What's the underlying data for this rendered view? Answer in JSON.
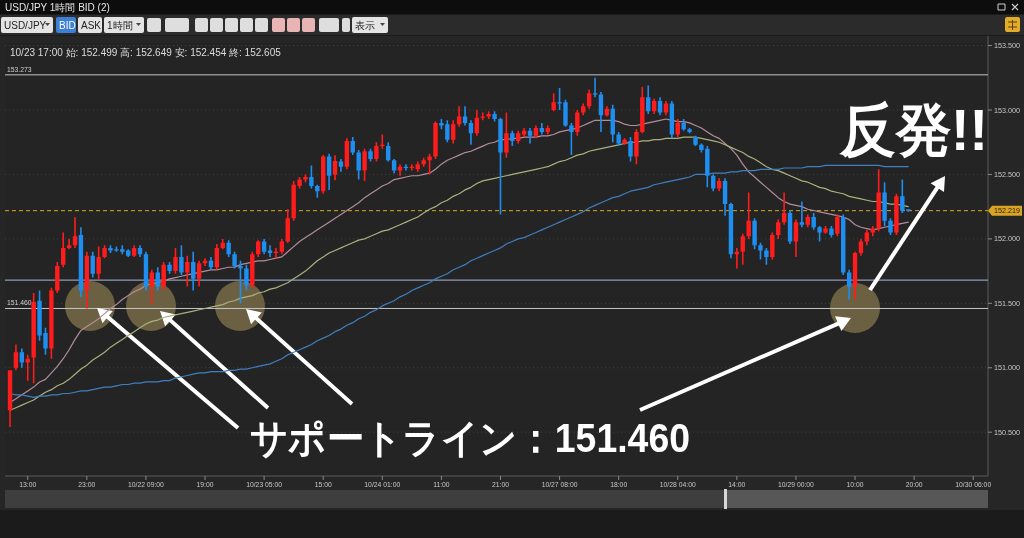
{
  "chart_data": {
    "type": "candlestick",
    "title": "USD/JPY 1時間 BID (2)",
    "subtitle": "10/23 17:00 始: 152.499 高: 152.649 安: 152.454 終: 152.605",
    "categories": [
      null,
      null,
      null,
      "13:00",
      null,
      null,
      null,
      null,
      null,
      null,
      null,
      null,
      null,
      "23:00",
      null,
      null,
      null,
      null,
      null,
      null,
      null,
      null,
      null,
      "10/22 09:00",
      null,
      null,
      null,
      null,
      null,
      null,
      null,
      null,
      null,
      "19:00",
      null,
      null,
      null,
      null,
      null,
      null,
      null,
      null,
      null,
      "10/23 05:00",
      null,
      null,
      null,
      null,
      null,
      null,
      null,
      null,
      null,
      "15:00",
      null,
      null,
      null,
      null,
      null,
      null,
      null,
      null,
      null,
      "10/24 01:00",
      null,
      null,
      null,
      null,
      null,
      null,
      null,
      null,
      null,
      "11:00",
      null,
      null,
      null,
      null,
      null,
      null,
      null,
      null,
      null,
      "21:00",
      null,
      null,
      null,
      null,
      null,
      null,
      null,
      null,
      null,
      "10/27 08:00",
      null,
      null,
      null,
      null,
      null,
      null,
      null,
      null,
      null,
      "18:00",
      null,
      null,
      null,
      null,
      null,
      null,
      null,
      null,
      null,
      "10/28 04:00",
      null,
      null,
      null,
      null,
      null,
      null,
      null,
      null,
      null,
      "14:00",
      null,
      null,
      null,
      null,
      null,
      null,
      null,
      null,
      null,
      "10/29 00:00",
      null,
      null,
      null,
      null,
      null,
      null,
      null,
      null,
      null,
      "10:00",
      null,
      null,
      null,
      null,
      null,
      null,
      null,
      null,
      null,
      "20:00",
      null,
      null,
      null,
      null,
      null,
      null,
      null,
      null,
      null,
      "10/30 06:00"
    ],
    "ohlc": [
      [
        150.67,
        150.98,
        150.54,
        150.98
      ],
      [
        151.0,
        151.18,
        150.98,
        151.12
      ],
      [
        151.12,
        151.15,
        151.0,
        151.04
      ],
      [
        151.04,
        151.1,
        150.9,
        151.07
      ],
      [
        151.08,
        151.58,
        150.88,
        151.51
      ],
      [
        151.52,
        151.6,
        151.21,
        151.25
      ],
      [
        151.27,
        151.31,
        151.1,
        151.15
      ],
      [
        151.15,
        151.62,
        151.07,
        151.6
      ],
      [
        151.6,
        151.82,
        151.58,
        151.79
      ],
      [
        151.8,
        152.05,
        151.78,
        151.93
      ],
      [
        151.93,
        152.0,
        151.92,
        151.95
      ],
      [
        151.95,
        152.17,
        151.93,
        152.02
      ],
      [
        152.03,
        152.09,
        151.55,
        151.6
      ],
      [
        151.6,
        151.9,
        151.46,
        151.87
      ],
      [
        151.87,
        151.9,
        151.7,
        151.73
      ],
      [
        151.73,
        151.94,
        151.68,
        151.86
      ],
      [
        151.86,
        151.95,
        151.85,
        151.93
      ],
      [
        151.93,
        151.95,
        151.89,
        151.91
      ],
      [
        151.92,
        151.94,
        151.9,
        151.91
      ],
      [
        151.92,
        151.95,
        151.88,
        151.9
      ],
      [
        151.91,
        151.92,
        151.86,
        151.87
      ],
      [
        151.87,
        151.95,
        151.86,
        151.93
      ],
      [
        151.93,
        151.95,
        151.86,
        151.88
      ],
      [
        151.88,
        151.9,
        151.6,
        151.63
      ],
      [
        151.63,
        151.76,
        151.49,
        151.74
      ],
      [
        151.74,
        151.78,
        151.6,
        151.63
      ],
      [
        151.63,
        151.82,
        151.6,
        151.8
      ],
      [
        151.8,
        151.82,
        151.73,
        151.75
      ],
      [
        151.75,
        151.93,
        151.73,
        151.86
      ],
      [
        151.86,
        151.95,
        151.72,
        151.74
      ],
      [
        151.74,
        151.87,
        151.63,
        151.82
      ],
      [
        151.82,
        151.9,
        151.6,
        151.69
      ],
      [
        151.69,
        151.83,
        151.63,
        151.81
      ],
      [
        151.81,
        151.85,
        151.79,
        151.83
      ],
      [
        151.83,
        151.86,
        151.76,
        151.78
      ],
      [
        151.78,
        151.96,
        151.76,
        151.93
      ],
      [
        151.93,
        152.0,
        151.92,
        151.97
      ],
      [
        151.97,
        151.99,
        151.86,
        151.88
      ],
      [
        151.88,
        151.9,
        151.77,
        151.79
      ],
      [
        151.79,
        151.83,
        151.5,
        151.77
      ],
      [
        151.77,
        151.8,
        151.6,
        151.64
      ],
      [
        151.64,
        151.9,
        151.62,
        151.88
      ],
      [
        151.88,
        151.99,
        151.86,
        151.98
      ],
      [
        151.98,
        152.0,
        151.88,
        151.9
      ],
      [
        151.91,
        151.95,
        151.86,
        151.89
      ],
      [
        151.89,
        151.93,
        151.85,
        151.9
      ],
      [
        151.9,
        152.0,
        151.88,
        151.98
      ],
      [
        151.98,
        152.23,
        151.97,
        152.16
      ],
      [
        152.16,
        152.45,
        152.14,
        152.42
      ],
      [
        152.41,
        152.48,
        152.39,
        152.46
      ],
      [
        152.46,
        152.5,
        152.44,
        152.48
      ],
      [
        152.48,
        152.57,
        152.39,
        152.41
      ],
      [
        152.41,
        152.42,
        152.32,
        152.37
      ],
      [
        152.37,
        152.65,
        152.35,
        152.64
      ],
      [
        152.64,
        152.66,
        152.38,
        152.49
      ],
      [
        152.499,
        152.649,
        152.454,
        152.605
      ],
      [
        152.6,
        152.62,
        152.52,
        152.56
      ],
      [
        152.56,
        152.78,
        152.54,
        152.76
      ],
      [
        152.76,
        152.79,
        152.65,
        152.67
      ],
      [
        152.67,
        152.69,
        152.46,
        152.53
      ],
      [
        152.53,
        152.7,
        152.45,
        152.68
      ],
      [
        152.68,
        152.7,
        152.6,
        152.62
      ],
      [
        152.62,
        152.75,
        152.6,
        152.72
      ],
      [
        152.72,
        152.81,
        152.7,
        152.73
      ],
      [
        152.72,
        152.75,
        152.6,
        152.61
      ],
      [
        152.61,
        152.62,
        152.51,
        152.53
      ],
      [
        152.53,
        152.58,
        152.49,
        152.56
      ],
      [
        152.56,
        152.58,
        152.53,
        152.55
      ],
      [
        152.55,
        152.58,
        152.53,
        152.56
      ],
      [
        152.54,
        152.6,
        152.52,
        152.58
      ],
      [
        152.58,
        152.63,
        152.56,
        152.61
      ],
      [
        152.61,
        152.66,
        152.5,
        152.64
      ],
      [
        152.64,
        152.91,
        152.62,
        152.9
      ],
      [
        152.9,
        152.93,
        152.85,
        152.88
      ],
      [
        152.89,
        152.92,
        152.75,
        152.77
      ],
      [
        152.77,
        152.92,
        152.74,
        152.89
      ],
      [
        152.89,
        153.03,
        152.87,
        152.95
      ],
      [
        152.95,
        153.03,
        152.88,
        152.9
      ],
      [
        152.9,
        152.92,
        152.73,
        152.82
      ],
      [
        152.82,
        153.0,
        152.8,
        152.94
      ],
      [
        152.94,
        152.98,
        152.92,
        152.95
      ],
      [
        152.95,
        152.99,
        152.93,
        152.97
      ],
      [
        152.97,
        152.99,
        152.91,
        152.93
      ],
      [
        152.93,
        152.94,
        152.19,
        152.67
      ],
      [
        152.67,
        152.98,
        152.63,
        152.82
      ],
      [
        152.82,
        152.84,
        152.72,
        152.76
      ],
      [
        152.76,
        152.84,
        152.74,
        152.82
      ],
      [
        152.81,
        152.86,
        152.79,
        152.84
      ],
      [
        152.84,
        152.86,
        152.74,
        152.8
      ],
      [
        152.8,
        152.88,
        152.78,
        152.86
      ],
      [
        152.86,
        152.9,
        152.81,
        152.83
      ],
      [
        152.83,
        152.88,
        152.81,
        152.86
      ],
      [
        153.0,
        153.13,
        152.99,
        153.06
      ],
      [
        153.06,
        153.17,
        153.0,
        153.05
      ],
      [
        153.06,
        153.08,
        152.87,
        152.88
      ],
      [
        152.88,
        152.9,
        152.65,
        152.83
      ],
      [
        152.83,
        153.0,
        152.8,
        152.98
      ],
      [
        152.98,
        153.05,
        152.96,
        153.03
      ],
      [
        153.03,
        153.16,
        153.01,
        153.13
      ],
      [
        153.13,
        153.25,
        153.1,
        153.12
      ],
      [
        153.12,
        153.14,
        152.83,
        152.96
      ],
      [
        152.96,
        153.03,
        152.95,
        153.01
      ],
      [
        153.01,
        153.04,
        152.75,
        152.81
      ],
      [
        152.81,
        152.83,
        152.72,
        152.74
      ],
      [
        152.74,
        152.78,
        152.73,
        152.77
      ],
      [
        152.76,
        152.79,
        152.6,
        152.64
      ],
      [
        152.64,
        152.85,
        152.58,
        152.83
      ],
      [
        152.83,
        153.18,
        152.82,
        153.1
      ],
      [
        153.1,
        153.19,
        152.97,
        152.99
      ],
      [
        152.99,
        153.09,
        152.97,
        153.07
      ],
      [
        153.07,
        153.1,
        152.96,
        152.98
      ],
      [
        152.98,
        153.07,
        152.96,
        153.05
      ],
      [
        153.05,
        153.07,
        152.78,
        152.81
      ],
      [
        152.81,
        152.93,
        152.79,
        152.9
      ],
      [
        152.9,
        152.93,
        152.84,
        152.85
      ],
      [
        152.85,
        152.86,
        152.82,
        152.83
      ],
      [
        152.79,
        152.8,
        152.72,
        152.73
      ],
      [
        152.73,
        152.74,
        152.67,
        152.69
      ],
      [
        152.7,
        152.72,
        152.4,
        152.49
      ],
      [
        152.49,
        152.5,
        152.37,
        152.39
      ],
      [
        152.39,
        152.47,
        152.37,
        152.45
      ],
      [
        152.45,
        152.47,
        152.18,
        152.27
      ],
      [
        152.27,
        152.28,
        151.85,
        151.88
      ],
      [
        151.88,
        151.93,
        151.77,
        151.9
      ],
      [
        151.9,
        152.04,
        151.8,
        152.02
      ],
      [
        152.02,
        152.36,
        152.0,
        152.14
      ],
      [
        152.14,
        152.16,
        151.92,
        151.95
      ],
      [
        151.95,
        151.97,
        151.84,
        151.91
      ],
      [
        151.91,
        151.93,
        151.8,
        151.86
      ],
      [
        151.86,
        152.05,
        151.84,
        152.03
      ],
      [
        152.03,
        152.15,
        152.0,
        152.13
      ],
      [
        152.13,
        152.36,
        152.11,
        152.2
      ],
      [
        152.2,
        152.22,
        151.96,
        151.98
      ],
      [
        151.98,
        152.15,
        151.86,
        152.13
      ],
      [
        152.13,
        152.29,
        152.09,
        152.11
      ],
      [
        152.11,
        152.19,
        152.09,
        152.17
      ],
      [
        152.17,
        152.2,
        152.07,
        152.09
      ],
      [
        152.09,
        152.1,
        151.98,
        152.05
      ],
      [
        152.05,
        152.1,
        152.04,
        152.08
      ],
      [
        152.08,
        152.1,
        152.01,
        152.03
      ],
      [
        152.04,
        152.19,
        152.02,
        152.17
      ],
      [
        152.17,
        152.19,
        151.72,
        151.74
      ],
      [
        151.74,
        151.76,
        151.53,
        151.63
      ],
      [
        151.63,
        151.9,
        151.53,
        151.89
      ],
      [
        151.89,
        152.0,
        151.87,
        151.98
      ],
      [
        151.98,
        152.07,
        151.95,
        152.05
      ],
      [
        152.05,
        152.1,
        152.02,
        152.08
      ],
      [
        152.08,
        152.54,
        152.06,
        152.36
      ],
      [
        152.36,
        152.44,
        152.1,
        152.14
      ],
      [
        152.14,
        152.16,
        152.03,
        152.05
      ],
      [
        152.05,
        152.35,
        152.03,
        152.33
      ],
      [
        152.33,
        152.46,
        152.2,
        152.22
      ],
      [
        152.23,
        152.23,
        152.21,
        152.219
      ],
      null,
      null,
      null,
      null,
      null,
      null,
      null,
      null,
      null,
      null,
      null
    ],
    "colors": [
      "#ff1c1c",
      "#ff1c1c",
      "#1f8ef1",
      "#ff1c1c",
      "#ff1c1c",
      "#1f8ef1",
      "#1f8ef1",
      "#ff1c1c",
      "#ff1c1c",
      "#ff1c1c",
      "#ff1c1c",
      "#ff1c1c",
      "#1f8ef1",
      "#ff1c1c",
      "#1f8ef1",
      "#ff1c1c",
      "#ff1c1c",
      "#1f8ef1",
      "#1f8ef1",
      "#1f8ef1",
      "#1f8ef1",
      "#ff1c1c",
      "#1f8ef1",
      "#1f8ef1",
      "#ff1c1c",
      "#1f8ef1",
      "#ff1c1c",
      "#1f8ef1",
      "#ff1c1c",
      "#1f8ef1",
      "#ff1c1c",
      "#1f8ef1",
      "#ff1c1c",
      "#ff1c1c",
      "#1f8ef1",
      "#ff1c1c",
      "#ff1c1c",
      "#1f8ef1",
      "#1f8ef1",
      "#1f8ef1",
      "#1f8ef1",
      "#ff1c1c",
      "#ff1c1c",
      "#1f8ef1",
      "#1f8ef1",
      "#ff1c1c",
      "#ff1c1c",
      "#ff1c1c",
      "#ff1c1c",
      "#ff1c1c",
      "#ff1c1c",
      "#1f8ef1",
      "#1f8ef1",
      "#ff1c1c",
      "#1f8ef1",
      "#ff1c1c",
      "#1f8ef1",
      "#ff1c1c",
      "#1f8ef1",
      "#1f8ef1",
      "#ff1c1c",
      "#1f8ef1",
      "#ff1c1c",
      "#ff1c1c",
      "#1f8ef1",
      "#1f8ef1",
      "#ff1c1c",
      "#1f8ef1",
      "#ff1c1c",
      "#ff1c1c",
      "#ff1c1c",
      "#ff1c1c",
      "#ff1c1c",
      "#1f8ef1",
      "#1f8ef1",
      "#ff1c1c",
      "#ff1c1c",
      "#1f8ef1",
      "#1f8ef1",
      "#ff1c1c",
      "#ff1c1c",
      "#ff1c1c",
      "#1f8ef1",
      "#1f8ef1",
      "#ff1c1c",
      "#1f8ef1",
      "#ff1c1c",
      "#ff1c1c",
      "#1f8ef1",
      "#ff1c1c",
      "#1f8ef1",
      "#ff1c1c",
      "#ff1c1c",
      "#1f8ef1",
      "#1f8ef1",
      "#1f8ef1",
      "#ff1c1c",
      "#ff1c1c",
      "#ff1c1c",
      "#1f8ef1",
      "#1f8ef1",
      "#ff1c1c",
      "#1f8ef1",
      "#1f8ef1",
      "#ff1c1c",
      "#1f8ef1",
      "#ff1c1c",
      "#ff1c1c",
      "#1f8ef1",
      "#ff1c1c",
      "#1f8ef1",
      "#ff1c1c",
      "#1f8ef1",
      "#ff1c1c",
      "#1f8ef1",
      "#1f8ef1",
      "#1f8ef1",
      "#1f8ef1",
      "#1f8ef1",
      "#1f8ef1",
      "#ff1c1c",
      "#1f8ef1",
      "#1f8ef1",
      "#ff1c1c",
      "#ff1c1c",
      "#ff1c1c",
      "#1f8ef1",
      "#1f8ef1",
      "#1f8ef1",
      "#ff1c1c",
      "#ff1c1c",
      "#ff1c1c",
      "#1f8ef1",
      "#ff1c1c",
      "#1f8ef1",
      "#ff1c1c",
      "#1f8ef1",
      "#1f8ef1",
      "#ff1c1c",
      "#1f8ef1",
      "#ff1c1c",
      "#1f8ef1",
      "#1f8ef1",
      "#ff1c1c",
      "#ff1c1c",
      "#ff1c1c",
      "#ff1c1c",
      "#ff1c1c",
      "#1f8ef1",
      "#1f8ef1",
      "#ff1c1c",
      "#1f8ef1",
      "#1f8ef1",
      null,
      null,
      null,
      null,
      null,
      null,
      null,
      null,
      null,
      null,
      null
    ],
    "series": [
      {
        "type": "line",
        "color": "#b48c9c",
        "values": [
          150.73,
          150.76,
          150.79,
          150.82,
          150.85,
          150.89,
          150.91,
          150.96,
          151.01,
          151.07,
          151.14,
          151.22,
          151.29,
          151.32,
          151.35,
          151.38,
          151.42,
          151.46,
          151.49,
          151.53,
          151.56,
          151.59,
          151.61,
          151.64,
          151.65,
          151.66,
          151.67,
          151.69,
          151.7,
          151.71,
          151.72,
          151.73,
          151.74,
          151.75,
          151.76,
          151.76,
          151.77,
          151.78,
          151.78,
          151.8,
          151.81,
          151.82,
          151.83,
          151.83,
          151.84,
          151.85,
          151.86,
          151.9,
          151.94,
          151.98,
          152.01,
          152.04,
          152.07,
          152.1,
          152.13,
          152.16,
          152.19,
          152.22,
          152.25,
          152.28,
          152.32,
          152.35,
          152.38,
          152.41,
          152.43,
          152.46,
          152.47,
          152.48,
          152.49,
          152.49,
          152.5,
          152.51,
          152.54,
          152.58,
          152.61,
          152.63,
          152.65,
          152.67,
          152.68,
          152.7,
          152.72,
          152.74,
          152.75,
          152.77,
          152.77,
          152.78,
          152.78,
          152.79,
          152.79,
          152.79,
          152.8,
          152.8,
          152.81,
          152.83,
          152.84,
          152.85,
          152.86,
          152.88,
          152.9,
          152.92,
          152.92,
          152.92,
          152.92,
          152.91,
          152.89,
          152.88,
          152.88,
          152.89,
          152.9,
          152.91,
          152.92,
          152.93,
          152.92,
          152.91,
          152.91,
          152.9,
          152.88,
          152.86,
          152.83,
          152.8,
          152.78,
          152.74,
          152.7,
          152.65,
          152.58,
          152.52,
          152.48,
          152.44,
          152.4,
          152.36,
          152.32,
          152.29,
          152.27,
          152.26,
          152.25,
          152.23,
          152.22,
          152.21,
          152.2,
          152.19,
          152.18,
          152.17,
          152.15,
          152.11,
          152.09,
          152.08,
          152.07,
          152.08,
          152.09,
          152.1,
          152.11,
          152.12,
          152.13,
          null,
          null,
          null,
          null,
          null,
          null,
          null,
          null,
          null,
          null,
          null
        ]
      },
      {
        "type": "line",
        "color": "#a9b27c",
        "values": [
          150.67,
          150.69,
          150.71,
          150.73,
          150.75,
          150.78,
          150.81,
          150.83,
          150.86,
          150.88,
          150.91,
          150.95,
          150.99,
          151.02,
          151.06,
          151.09,
          151.12,
          151.16,
          151.19,
          151.22,
          151.25,
          151.28,
          151.31,
          151.34,
          151.36,
          151.37,
          151.39,
          151.4,
          151.41,
          151.42,
          151.43,
          151.44,
          151.45,
          151.46,
          151.47,
          151.48,
          151.49,
          151.51,
          151.52,
          151.54,
          151.55,
          151.56,
          151.58,
          151.59,
          151.61,
          151.62,
          151.64,
          151.66,
          151.69,
          151.72,
          151.75,
          151.79,
          151.83,
          151.86,
          151.89,
          151.91,
          151.93,
          151.95,
          151.97,
          151.99,
          152.0,
          152.02,
          152.04,
          152.06,
          152.07,
          152.09,
          152.11,
          152.13,
          152.15,
          152.17,
          152.2,
          152.23,
          152.25,
          152.28,
          152.3,
          152.33,
          152.35,
          152.38,
          152.4,
          152.43,
          152.45,
          152.46,
          152.47,
          152.48,
          152.49,
          152.5,
          152.51,
          152.52,
          152.53,
          152.54,
          152.55,
          152.56,
          152.58,
          152.6,
          152.61,
          152.63,
          152.65,
          152.66,
          152.68,
          152.69,
          152.7,
          152.71,
          152.72,
          152.73,
          152.74,
          152.75,
          152.75,
          152.76,
          152.76,
          152.77,
          152.77,
          152.78,
          152.78,
          152.78,
          152.79,
          152.79,
          152.79,
          152.78,
          152.77,
          152.76,
          152.75,
          152.73,
          152.71,
          152.69,
          152.67,
          152.64,
          152.62,
          152.59,
          152.56,
          152.54,
          152.53,
          152.51,
          152.49,
          152.47,
          152.45,
          152.44,
          152.42,
          152.4,
          152.39,
          152.37,
          152.36,
          152.35,
          152.33,
          152.32,
          152.31,
          152.3,
          152.29,
          152.29,
          152.28,
          152.27,
          152.27,
          152.26,
          152.25,
          null,
          null,
          null,
          null,
          null,
          null,
          null,
          null,
          null,
          null,
          null
        ]
      },
      {
        "type": "line",
        "color": "#3f7fc0",
        "values": [
          150.8,
          150.79,
          150.79,
          150.78,
          150.77,
          150.78,
          150.78,
          150.79,
          150.79,
          150.8,
          150.8,
          150.81,
          150.82,
          150.82,
          150.83,
          150.84,
          150.85,
          150.85,
          150.86,
          150.87,
          150.87,
          150.88,
          150.88,
          150.89,
          150.89,
          150.89,
          150.9,
          150.9,
          150.92,
          150.93,
          150.94,
          150.95,
          150.96,
          150.96,
          150.97,
          150.97,
          150.97,
          150.98,
          150.98,
          150.99,
          150.99,
          151.0,
          151.01,
          151.02,
          151.03,
          151.05,
          151.07,
          151.1,
          151.12,
          151.14,
          151.16,
          151.18,
          151.21,
          151.23,
          151.25,
          151.28,
          151.3,
          151.33,
          151.35,
          151.38,
          151.4,
          151.43,
          151.45,
          151.48,
          151.5,
          151.52,
          151.55,
          151.57,
          151.6,
          151.62,
          151.64,
          151.66,
          151.69,
          151.71,
          151.73,
          151.76,
          151.78,
          151.8,
          151.83,
          151.85,
          151.87,
          151.89,
          151.91,
          151.93,
          151.96,
          151.98,
          152.0,
          152.01,
          152.03,
          152.05,
          152.07,
          152.09,
          152.11,
          152.13,
          152.15,
          152.17,
          152.19,
          152.21,
          152.24,
          152.26,
          152.28,
          152.3,
          152.32,
          152.33,
          152.35,
          152.37,
          152.38,
          152.39,
          152.4,
          152.42,
          152.43,
          152.44,
          152.45,
          152.46,
          152.47,
          152.48,
          152.5,
          152.5,
          152.5,
          152.51,
          152.51,
          152.51,
          152.52,
          152.52,
          152.53,
          152.53,
          152.53,
          152.54,
          152.54,
          152.54,
          152.54,
          152.55,
          152.55,
          152.55,
          152.55,
          152.56,
          152.56,
          152.56,
          152.57,
          152.57,
          152.57,
          152.57,
          152.57,
          152.57,
          152.57,
          152.57,
          152.57,
          152.57,
          152.56,
          152.56,
          152.56,
          152.56,
          152.56,
          null,
          null,
          null,
          null,
          null,
          null,
          null,
          null,
          null,
          null,
          null
        ]
      }
    ],
    "ylim": [
      150.16,
      153.52
    ],
    "yticks": [
      {
        "value": 150.5,
        "label": "150.500"
      },
      {
        "value": 151,
        "label": "151.000"
      },
      {
        "value": 151.5,
        "label": "151.500"
      },
      {
        "value": 152,
        "label": "152.000"
      },
      {
        "value": 152.5,
        "label": "152.500"
      },
      {
        "value": 153,
        "label": "153.000"
      },
      {
        "value": 153.5,
        "label": "153.500"
      }
    ],
    "grid": "y",
    "ref_lines": [
      {
        "axis": "y",
        "value": 153.273,
        "label": "153.273",
        "color": "#c4c4c4"
      },
      {
        "axis": "y",
        "value": 151.46,
        "label": "151.460",
        "color": "#c4c4c4"
      },
      {
        "axis": "y",
        "value": 152.219,
        "label": "152.219",
        "color": "#d9a424",
        "line_style": "dashed"
      },
      {
        "axis": "y",
        "value": 151.68,
        "color": "#aab6e2"
      }
    ],
    "annotations": [
      "サポートライン：151.460",
      "反発!!",
      "USD/JPY",
      "BID",
      "ASK",
      "1時間",
      "表示"
    ]
  }
}
